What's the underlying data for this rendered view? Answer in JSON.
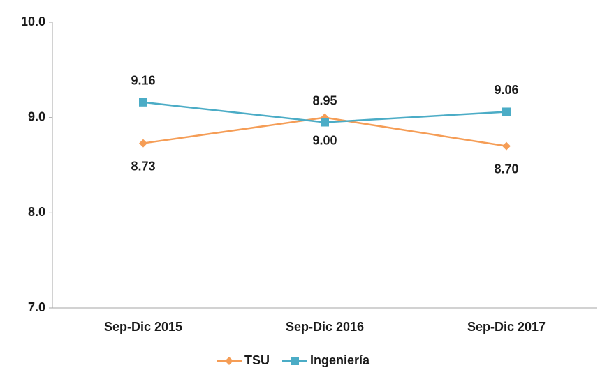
{
  "chart_data": {
    "type": "line",
    "categories": [
      "Sep-Dic 2015",
      "Sep-Dic 2016",
      "Sep-Dic 2017"
    ],
    "series": [
      {
        "name": "TSU",
        "color": "#f59d56",
        "marker": "diamond",
        "values": [
          8.73,
          9.0,
          8.7
        ],
        "value_labels": [
          "8.73",
          "9.00",
          "8.70"
        ]
      },
      {
        "name": "Ingeniería",
        "color": "#4bacc6",
        "marker": "square",
        "values": [
          9.16,
          8.95,
          9.06
        ]
      }
    ],
    "ylim": [
      7,
      10
    ],
    "yticks": [
      {
        "value": 7,
        "label": "7.0"
      },
      {
        "value": 8,
        "label": "8.0"
      },
      {
        "value": 9,
        "label": "9.0"
      },
      {
        "value": 10,
        "label": "10.0"
      }
    ],
    "grid": false,
    "legend": "bottom"
  }
}
